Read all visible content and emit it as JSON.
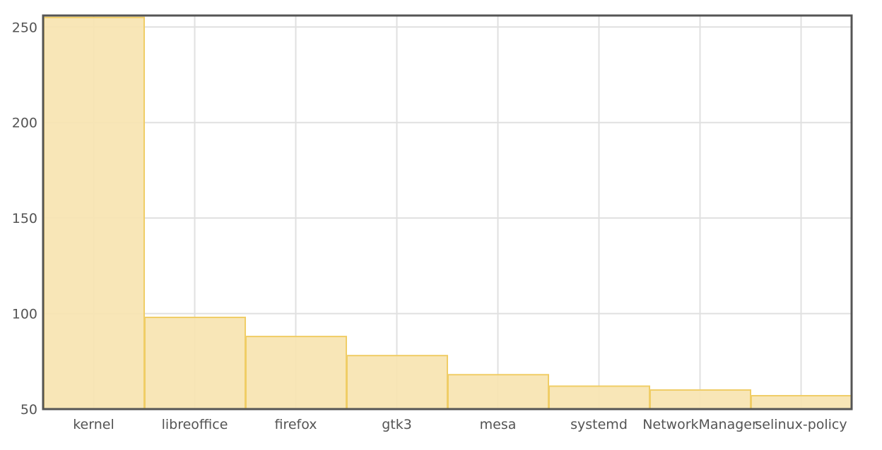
{
  "chart_data": {
    "type": "bar",
    "categories": [
      "kernel",
      "libreoffice",
      "firefox",
      "gtk3",
      "mesa",
      "systemd",
      "NetworkManager",
      "selinux-policy"
    ],
    "values": [
      255,
      98,
      88,
      78,
      68,
      62,
      60,
      57
    ],
    "title": "",
    "xlabel": "",
    "ylabel": "",
    "ylim": [
      50,
      256
    ],
    "yticks": [
      50,
      100,
      150,
      200,
      250
    ],
    "grid": true,
    "legend": "none"
  },
  "colors": {
    "bar_fill": "#f7e4b1",
    "bar_stroke": "#f0cd66",
    "grid": "#e0e0e0",
    "frame": "#555555",
    "text": "#545454"
  }
}
